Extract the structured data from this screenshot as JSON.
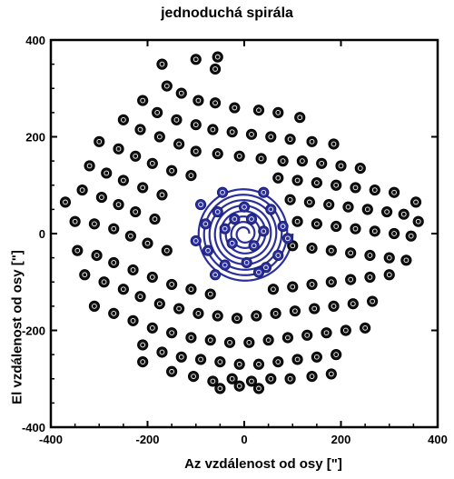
{
  "chart_data": {
    "type": "scatter",
    "title": "jednoduchá spirála",
    "xlabel": "Az  vzdálenost od osy [\"]",
    "ylabel": "El  vzdálenost od osy [\"]",
    "xlim": [
      -400,
      400
    ],
    "ylim": [
      -400,
      400
    ],
    "xticks": [
      -400,
      -200,
      0,
      200,
      400
    ],
    "yticks": [
      -400,
      -200,
      0,
      200,
      400
    ],
    "grid": false,
    "colors": {
      "points": "#111111",
      "spiral": "#2b2f9c",
      "axes": "#000000"
    },
    "series": [
      {
        "points": [
          [
            -170,
            350
          ],
          [
            -100,
            360
          ],
          [
            -55,
            365
          ],
          [
            -60,
            340
          ],
          [
            -160,
            305
          ],
          [
            -130,
            290
          ],
          [
            -95,
            275
          ],
          [
            -60,
            270
          ],
          [
            -20,
            260
          ],
          [
            30,
            255
          ],
          [
            70,
            250
          ],
          [
            115,
            240
          ],
          [
            -210,
            275
          ],
          [
            -180,
            250
          ],
          [
            -140,
            235
          ],
          [
            -100,
            225
          ],
          [
            -65,
            215
          ],
          [
            -25,
            210
          ],
          [
            15,
            205
          ],
          [
            55,
            200
          ],
          [
            95,
            195
          ],
          [
            140,
            190
          ],
          [
            185,
            185
          ],
          [
            -250,
            235
          ],
          [
            -215,
            215
          ],
          [
            -175,
            200
          ],
          [
            -135,
            185
          ],
          [
            -100,
            170
          ],
          [
            -55,
            165
          ],
          [
            -10,
            160
          ],
          [
            35,
            155
          ],
          [
            80,
            150
          ],
          [
            120,
            150
          ],
          [
            160,
            145
          ],
          [
            200,
            140
          ],
          [
            240,
            135
          ],
          [
            -300,
            190
          ],
          [
            -260,
            175
          ],
          [
            -225,
            160
          ],
          [
            -190,
            145
          ],
          [
            -150,
            130
          ],
          [
            -110,
            120
          ],
          [
            70,
            115
          ],
          [
            110,
            110
          ],
          [
            150,
            105
          ],
          [
            190,
            100
          ],
          [
            230,
            95
          ],
          [
            270,
            90
          ],
          [
            310,
            85
          ],
          [
            -320,
            140
          ],
          [
            -285,
            125
          ],
          [
            -250,
            110
          ],
          [
            -210,
            95
          ],
          [
            -170,
            80
          ],
          [
            95,
            70
          ],
          [
            135,
            65
          ],
          [
            175,
            60
          ],
          [
            215,
            55
          ],
          [
            255,
            50
          ],
          [
            295,
            45
          ],
          [
            330,
            40
          ],
          [
            -335,
            90
          ],
          [
            -295,
            75
          ],
          [
            -260,
            60
          ],
          [
            -225,
            45
          ],
          [
            -185,
            30
          ],
          [
            110,
            25
          ],
          [
            150,
            20
          ],
          [
            190,
            15
          ],
          [
            230,
            10
          ],
          [
            270,
            5
          ],
          [
            310,
            0
          ],
          [
            345,
            -5
          ],
          [
            -370,
            65
          ],
          [
            -350,
            25
          ],
          [
            -310,
            20
          ],
          [
            -270,
            10
          ],
          [
            -235,
            -5
          ],
          [
            -200,
            -20
          ],
          [
            -160,
            -35
          ],
          [
            100,
            -25
          ],
          [
            140,
            -30
          ],
          [
            180,
            -35
          ],
          [
            220,
            -40
          ],
          [
            260,
            -45
          ],
          [
            300,
            -50
          ],
          [
            335,
            -55
          ],
          [
            360,
            25
          ],
          [
            355,
            65
          ],
          [
            -345,
            -35
          ],
          [
            -305,
            -45
          ],
          [
            -270,
            -60
          ],
          [
            -230,
            -75
          ],
          [
            -190,
            -90
          ],
          [
            -150,
            -105
          ],
          [
            -110,
            -115
          ],
          [
            -70,
            -125
          ],
          [
            60,
            -115
          ],
          [
            100,
            -110
          ],
          [
            140,
            -105
          ],
          [
            180,
            -100
          ],
          [
            220,
            -95
          ],
          [
            260,
            -90
          ],
          [
            300,
            -85
          ],
          [
            -330,
            -85
          ],
          [
            -290,
            -100
          ],
          [
            -250,
            -115
          ],
          [
            -215,
            -130
          ],
          [
            -175,
            -145
          ],
          [
            -135,
            -155
          ],
          [
            -95,
            -165
          ],
          [
            -55,
            -170
          ],
          [
            -15,
            -175
          ],
          [
            25,
            -170
          ],
          [
            65,
            -165
          ],
          [
            105,
            -160
          ],
          [
            145,
            -155
          ],
          [
            185,
            -150
          ],
          [
            225,
            -145
          ],
          [
            265,
            -140
          ],
          [
            -310,
            -150
          ],
          [
            -270,
            -165
          ],
          [
            -230,
            -180
          ],
          [
            -190,
            -195
          ],
          [
            -150,
            -205
          ],
          [
            -110,
            -215
          ],
          [
            -70,
            -220
          ],
          [
            -30,
            -225
          ],
          [
            10,
            -225
          ],
          [
            50,
            -220
          ],
          [
            90,
            -215
          ],
          [
            130,
            -210
          ],
          [
            170,
            -205
          ],
          [
            210,
            -200
          ],
          [
            250,
            -195
          ],
          [
            -210,
            -230
          ],
          [
            -170,
            -245
          ],
          [
            -130,
            -255
          ],
          [
            -90,
            -260
          ],
          [
            -50,
            -265
          ],
          [
            -10,
            -270
          ],
          [
            30,
            -270
          ],
          [
            70,
            -265
          ],
          [
            110,
            -260
          ],
          [
            150,
            -255
          ],
          [
            190,
            -250
          ],
          [
            -210,
            -265
          ],
          [
            -150,
            -285
          ],
          [
            -105,
            -295
          ],
          [
            -65,
            -305
          ],
          [
            -25,
            -300
          ],
          [
            15,
            -305
          ],
          [
            55,
            -300
          ],
          [
            95,
            -300
          ],
          [
            140,
            -295
          ],
          [
            180,
            -290
          ],
          [
            -50,
            -320
          ],
          [
            -10,
            -315
          ],
          [
            30,
            -320
          ]
        ]
      },
      {
        "points": [
          [
            -20,
            30
          ],
          [
            15,
            30
          ],
          [
            -40,
            10
          ],
          [
            40,
            5
          ],
          [
            -25,
            -20
          ],
          [
            20,
            -25
          ],
          [
            0,
            55
          ],
          [
            -55,
            45
          ],
          [
            55,
            50
          ],
          [
            -80,
            20
          ],
          [
            80,
            15
          ],
          [
            -75,
            -35
          ],
          [
            70,
            -45
          ],
          [
            -40,
            -65
          ],
          [
            5,
            -60
          ],
          [
            45,
            -70
          ],
          [
            -45,
            85
          ],
          [
            40,
            85
          ],
          [
            -90,
            60
          ],
          [
            90,
            -10
          ],
          [
            -60,
            -85
          ],
          [
            30,
            -80
          ],
          [
            -100,
            -15
          ]
        ]
      }
    ],
    "spiral": {
      "center": [
        0,
        0
      ],
      "inner_radius": 10,
      "outer_radius": 100,
      "turns": 8
    }
  }
}
